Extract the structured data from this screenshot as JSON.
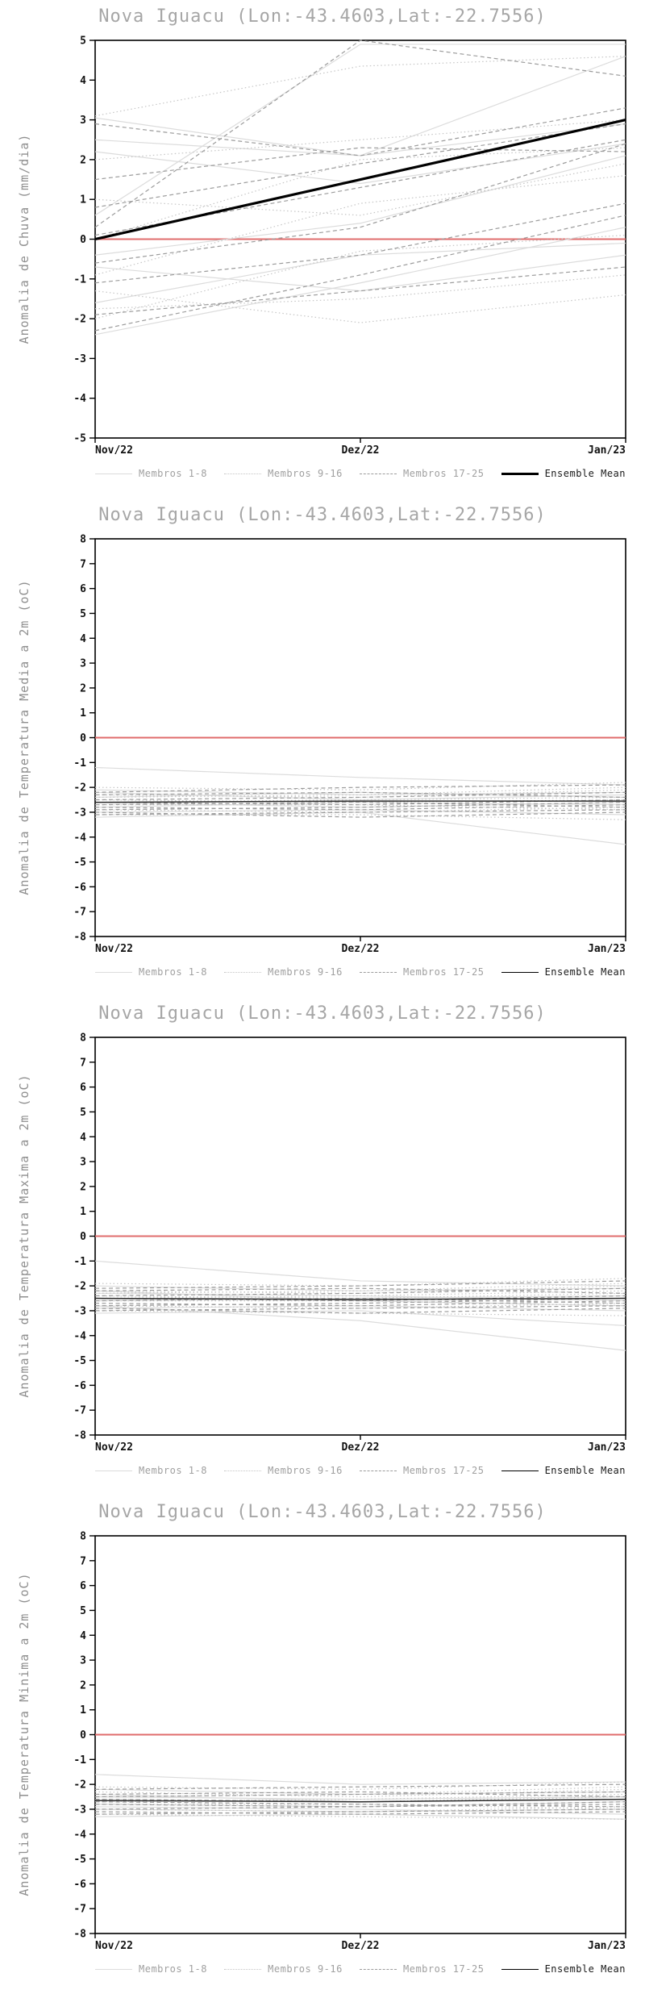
{
  "page": {
    "background": "#ffffff"
  },
  "colors": {
    "title": "#a6a6a6",
    "axis": "#000000",
    "zero_line": "#e06c6c",
    "members_1_8": "#dcdcdc",
    "members_9_16": "#c6c6c6",
    "members_17_25": "#9c9c9c",
    "ensemble_mean": "#000000"
  },
  "charts": [
    {
      "title": "Nova Iguacu (Lon:-43.4603,Lat:-22.7556)",
      "ylabel": "Anomalia de Chuva (mm/dia)",
      "legend": [
        {
          "label": "Membros 1-8",
          "style": "solid",
          "color": "#dcdcdc",
          "width": 1.2,
          "label_color": "#a0a0a0"
        },
        {
          "label": "Membros 9-16",
          "style": "dotted",
          "color": "#c6c6c6",
          "width": 1.2,
          "label_color": "#a0a0a0"
        },
        {
          "label": "Membros 17-25",
          "style": "dashed",
          "color": "#9c9c9c",
          "width": 1.2,
          "label_color": "#a0a0a0"
        },
        {
          "label": "Ensemble Mean",
          "style": "solid",
          "color": "#000000",
          "width": 3,
          "label_color": "#1a1a1a",
          "bold": true
        }
      ],
      "chart_data": {
        "type": "line",
        "x": [
          0,
          1,
          2
        ],
        "x_tick_labels": [
          "Nov/22",
          "Dez/22",
          "Jan/23"
        ],
        "ylim": [
          -5,
          5
        ],
        "ytick_step": 1,
        "zero_line": {
          "color": "#e06c6c"
        },
        "groups": [
          {
            "name": "Membros 1-8",
            "style": "solid",
            "color": "#dcdcdc",
            "members": [
              [
                3.05,
                2.1,
                2.9
              ],
              [
                2.5,
                2.1,
                4.6
              ],
              [
                0.6,
                4.9,
                4.9
              ],
              [
                -2.4,
                -1.1,
                0.3
              ],
              [
                -1.6,
                -0.4,
                -0.1
              ],
              [
                -0.4,
                0.4,
                2.1
              ],
              [
                2.2,
                1.4,
                2.4
              ],
              [
                -0.7,
                -1.3,
                -0.4
              ]
            ]
          },
          {
            "name": "Membros 9-16",
            "style": "dotted",
            "color": "#c6c6c6",
            "members": [
              [
                3.1,
                4.35,
                4.6
              ],
              [
                -1.75,
                -1.5,
                -0.9
              ],
              [
                0.0,
                2.0,
                2.3
              ],
              [
                -2.0,
                -0.3,
                0.1
              ],
              [
                1.0,
                0.6,
                1.9
              ],
              [
                -0.9,
                0.9,
                1.6
              ],
              [
                2.0,
                2.5,
                3.0
              ],
              [
                -1.3,
                -2.1,
                -1.4
              ]
            ]
          },
          {
            "name": "Membros 17-25",
            "style": "dashed",
            "color": "#9c9c9c",
            "members": [
              [
                0.3,
                5.0,
                4.1
              ],
              [
                -1.9,
                -1.3,
                -0.7
              ],
              [
                1.5,
                2.3,
                2.2
              ],
              [
                -2.3,
                -0.9,
                0.6
              ],
              [
                0.8,
                1.9,
                2.9
              ],
              [
                -0.6,
                0.3,
                2.4
              ],
              [
                2.9,
                2.1,
                3.3
              ],
              [
                -1.1,
                -0.4,
                0.9
              ],
              [
                0.1,
                1.3,
                2.5
              ]
            ]
          }
        ],
        "mean": {
          "name": "Ensemble Mean",
          "color": "#000000",
          "width": 3.2,
          "values": [
            0.0,
            1.5,
            3.0
          ]
        }
      }
    },
    {
      "title": "Nova Iguacu (Lon:-43.4603,Lat:-22.7556)",
      "ylabel": "Anomalia de Temperatura Media a 2m (oC)",
      "legend": [
        {
          "label": "Membros 1-8",
          "style": "solid",
          "color": "#dcdcdc",
          "width": 1.2,
          "label_color": "#a0a0a0"
        },
        {
          "label": "Membros 9-16",
          "style": "dotted",
          "color": "#c6c6c6",
          "width": 1.2,
          "label_color": "#a0a0a0"
        },
        {
          "label": "Membros 17-25",
          "style": "dashed",
          "color": "#9c9c9c",
          "width": 1.2,
          "label_color": "#a0a0a0"
        },
        {
          "label": "Ensemble Mean",
          "style": "solid",
          "color": "#000000",
          "width": 1.5,
          "label_color": "#1a1a1a",
          "bold": true
        }
      ],
      "chart_data": {
        "type": "line",
        "x": [
          0,
          1,
          2
        ],
        "x_tick_labels": [
          "Nov/22",
          "Dez/22",
          "Jan/23"
        ],
        "ylim": [
          -8,
          8
        ],
        "ytick_step": 1,
        "zero_line": {
          "color": "#e06c6c"
        },
        "groups": [
          {
            "name": "Membros 1-8",
            "style": "solid",
            "color": "#dcdcdc",
            "members": [
              [
                -1.2,
                -1.6,
                -1.9
              ],
              [
                -2.1,
                -2.3,
                -2.2
              ],
              [
                -2.4,
                -2.2,
                -2.4
              ],
              [
                -2.8,
                -2.6,
                -2.7
              ],
              [
                -3.0,
                -2.9,
                -3.1
              ],
              [
                -2.2,
                -2.5,
                -2.3
              ],
              [
                -2.6,
                -2.8,
                -2.6
              ],
              [
                -3.2,
                -3.0,
                -4.3
              ]
            ]
          },
          {
            "name": "Membros 9-16",
            "style": "dotted",
            "color": "#c6c6c6",
            "members": [
              [
                -2.0,
                -2.1,
                -1.8
              ],
              [
                -2.3,
                -2.4,
                -2.1
              ],
              [
                -2.5,
                -2.6,
                -2.5
              ],
              [
                -2.7,
                -2.7,
                -2.9
              ],
              [
                -2.9,
                -3.0,
                -2.8
              ],
              [
                -3.1,
                -3.1,
                -3.3
              ],
              [
                -2.4,
                -2.3,
                -2.0
              ],
              [
                -2.6,
                -2.5,
                -2.4
              ]
            ]
          },
          {
            "name": "Membros 17-25",
            "style": "dashed",
            "color": "#9c9c9c",
            "members": [
              [
                -2.2,
                -2.0,
                -1.9
              ],
              [
                -2.5,
                -2.4,
                -2.2
              ],
              [
                -2.8,
                -2.9,
                -2.7
              ],
              [
                -3.0,
                -3.2,
                -3.0
              ],
              [
                -2.3,
                -2.2,
                -2.4
              ],
              [
                -2.7,
                -2.6,
                -2.8
              ],
              [
                -2.9,
                -2.8,
                -2.6
              ],
              [
                -3.1,
                -3.0,
                -2.9
              ],
              [
                -2.6,
                -2.7,
                -2.5
              ]
            ]
          }
        ],
        "mean": {
          "name": "Ensemble Mean",
          "color": "#2a2a2a",
          "width": 1.5,
          "values": [
            -2.6,
            -2.55,
            -2.55
          ]
        }
      }
    },
    {
      "title": "Nova Iguacu (Lon:-43.4603,Lat:-22.7556)",
      "ylabel": "Anomalia de Temperatura Maxima a 2m (oC)",
      "legend": [
        {
          "label": "Membros 1-8",
          "style": "solid",
          "color": "#dcdcdc",
          "width": 1.2,
          "label_color": "#a0a0a0"
        },
        {
          "label": "Membros 9-16",
          "style": "dotted",
          "color": "#c6c6c6",
          "width": 1.2,
          "label_color": "#a0a0a0"
        },
        {
          "label": "Membros 17-25",
          "style": "dashed",
          "color": "#9c9c9c",
          "width": 1.2,
          "label_color": "#a0a0a0"
        },
        {
          "label": "Ensemble Mean",
          "style": "solid",
          "color": "#000000",
          "width": 1.5,
          "label_color": "#1a1a1a",
          "bold": true
        }
      ],
      "chart_data": {
        "type": "line",
        "x": [
          0,
          1,
          2
        ],
        "x_tick_labels": [
          "Nov/22",
          "Dez/22",
          "Jan/23"
        ],
        "ylim": [
          -8,
          8
        ],
        "ytick_step": 1,
        "zero_line": {
          "color": "#e06c6c"
        },
        "groups": [
          {
            "name": "Membros 1-8",
            "style": "solid",
            "color": "#dcdcdc",
            "members": [
              [
                -1.0,
                -1.8,
                -2.0
              ],
              [
                -2.0,
                -2.2,
                -2.1
              ],
              [
                -2.3,
                -2.4,
                -2.6
              ],
              [
                -2.6,
                -2.5,
                -2.4
              ],
              [
                -2.9,
                -2.8,
                -3.0
              ],
              [
                -3.1,
                -3.0,
                -3.6
              ],
              [
                -2.2,
                -2.6,
                -2.8
              ],
              [
                -2.8,
                -3.4,
                -4.6
              ]
            ]
          },
          {
            "name": "Membros 9-16",
            "style": "dotted",
            "color": "#c6c6c6",
            "members": [
              [
                -1.9,
                -2.0,
                -1.7
              ],
              [
                -2.2,
                -2.3,
                -2.0
              ],
              [
                -2.4,
                -2.5,
                -2.3
              ],
              [
                -2.6,
                -2.6,
                -2.8
              ],
              [
                -2.8,
                -2.9,
                -2.7
              ],
              [
                -3.0,
                -3.1,
                -3.2
              ],
              [
                -2.3,
                -2.2,
                -1.9
              ],
              [
                -2.5,
                -2.4,
                -2.2
              ]
            ]
          },
          {
            "name": "Membros 17-25",
            "style": "dashed",
            "color": "#9c9c9c",
            "members": [
              [
                -2.1,
                -2.0,
                -1.8
              ],
              [
                -2.4,
                -2.3,
                -2.1
              ],
              [
                -2.7,
                -2.8,
                -2.6
              ],
              [
                -2.9,
                -3.1,
                -2.9
              ],
              [
                -2.2,
                -2.1,
                -2.3
              ],
              [
                -2.6,
                -2.5,
                -2.7
              ],
              [
                -2.8,
                -2.7,
                -2.5
              ],
              [
                -3.0,
                -2.9,
                -2.8
              ],
              [
                -2.5,
                -2.6,
                -2.4
              ]
            ]
          }
        ],
        "mean": {
          "name": "Ensemble Mean",
          "color": "#2a2a2a",
          "width": 1.5,
          "values": [
            -2.5,
            -2.55,
            -2.5
          ]
        }
      }
    },
    {
      "title": "Nova Iguacu (Lon:-43.4603,Lat:-22.7556)",
      "ylabel": "Anomalia de Temperatura Minima a 2m (oC)",
      "legend": [
        {
          "label": "Membros 1-8",
          "style": "solid",
          "color": "#dcdcdc",
          "width": 1.2,
          "label_color": "#a0a0a0"
        },
        {
          "label": "Membros 9-16",
          "style": "dotted",
          "color": "#c6c6c6",
          "width": 1.2,
          "label_color": "#a0a0a0"
        },
        {
          "label": "Membros 17-25",
          "style": "dashed",
          "color": "#9c9c9c",
          "width": 1.2,
          "label_color": "#a0a0a0"
        },
        {
          "label": "Ensemble Mean",
          "style": "solid",
          "color": "#000000",
          "width": 1.5,
          "label_color": "#1a1a1a",
          "bold": true
        }
      ],
      "chart_data": {
        "type": "line",
        "x": [
          0,
          1,
          2
        ],
        "x_tick_labels": [
          "Nov/22",
          "Dez/22",
          "Jan/23"
        ],
        "ylim": [
          -8,
          8
        ],
        "ytick_step": 1,
        "zero_line": {
          "color": "#e06c6c"
        },
        "groups": [
          {
            "name": "Membros 1-8",
            "style": "solid",
            "color": "#dcdcdc",
            "members": [
              [
                -1.6,
                -2.0,
                -1.9
              ],
              [
                -2.2,
                -2.4,
                -2.3
              ],
              [
                -2.5,
                -2.6,
                -2.5
              ],
              [
                -2.8,
                -2.9,
                -2.7
              ],
              [
                -3.0,
                -3.1,
                -3.0
              ],
              [
                -3.3,
                -3.2,
                -3.4
              ],
              [
                -2.4,
                -2.7,
                -2.6
              ],
              [
                -2.9,
                -3.0,
                -3.2
              ]
            ]
          },
          {
            "name": "Membros 9-16",
            "style": "dotted",
            "color": "#c6c6c6",
            "members": [
              [
                -2.1,
                -2.2,
                -1.9
              ],
              [
                -2.3,
                -2.5,
                -2.2
              ],
              [
                -2.6,
                -2.7,
                -2.5
              ],
              [
                -2.8,
                -2.8,
                -3.0
              ],
              [
                -3.0,
                -3.1,
                -2.9
              ],
              [
                -3.2,
                -3.3,
                -3.4
              ],
              [
                -2.5,
                -2.4,
                -2.1
              ],
              [
                -2.7,
                -2.6,
                -2.4
              ]
            ]
          },
          {
            "name": "Membros 17-25",
            "style": "dashed",
            "color": "#9c9c9c",
            "members": [
              [
                -2.2,
                -2.1,
                -2.0
              ],
              [
                -2.5,
                -2.4,
                -2.3
              ],
              [
                -2.8,
                -2.9,
                -2.8
              ],
              [
                -3.1,
                -3.2,
                -3.1
              ],
              [
                -2.4,
                -2.3,
                -2.5
              ],
              [
                -2.7,
                -2.8,
                -2.9
              ],
              [
                -3.0,
                -2.9,
                -2.7
              ],
              [
                -3.2,
                -3.1,
                -3.0
              ],
              [
                -2.6,
                -2.7,
                -2.6
              ]
            ]
          }
        ],
        "mean": {
          "name": "Ensemble Mean",
          "color": "#2a2a2a",
          "width": 1.5,
          "values": [
            -2.65,
            -2.7,
            -2.6
          ]
        }
      }
    }
  ]
}
